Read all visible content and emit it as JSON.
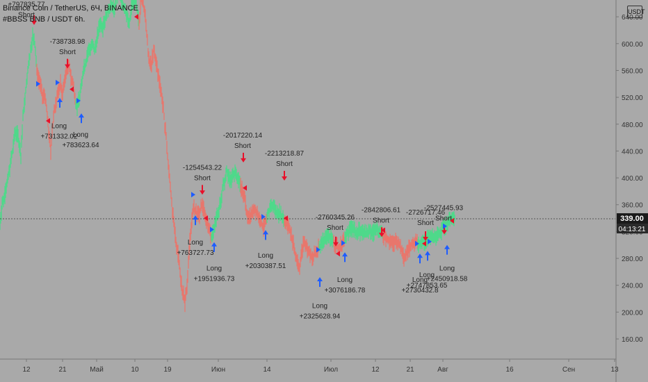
{
  "header": {
    "symbol_line": "Binance Coin / TetherUS, 6Ч, BINANCE",
    "strategy_line": "#BBSS BNB / USDT 6h.",
    "currency_badge": "USDT"
  },
  "price_tag": {
    "price": "339.00",
    "countdown": "04:13:21"
  },
  "colors": {
    "background": "#a9a9a9",
    "up": "#4fd98a",
    "down": "#e8766d",
    "long_arrow": "#1e5cff",
    "short_arrow": "#e8102a",
    "price_tag_bg": "#1a1a1a",
    "countdown_bg": "#2a2a2a"
  },
  "chart_data": {
    "type": "line",
    "y_axis": {
      "ticks": [
        160,
        200,
        240,
        280,
        320,
        360,
        400,
        440,
        480,
        520,
        560,
        600,
        640
      ],
      "tick_labels": [
        "160.00",
        "200.00",
        "240.00",
        "280.00",
        "320.00",
        "360.00",
        "400.00",
        "440.00",
        "480.00",
        "520.00",
        "560.00",
        "600.00",
        "640.00"
      ],
      "ylim": [
        130,
        665
      ],
      "current_price": 339.0
    },
    "x_axis": {
      "tick_labels": [
        "12",
        "21",
        "Май",
        "10",
        "19",
        "Июн",
        "14",
        "Июл",
        "12",
        "21",
        "Авг",
        "16",
        "Сен",
        "13"
      ]
    },
    "price_path": [
      [
        0,
        332
      ],
      [
        3,
        360
      ],
      [
        8,
        380
      ],
      [
        13,
        410
      ],
      [
        18,
        440
      ],
      [
        22,
        470
      ],
      [
        26,
        462
      ],
      [
        30,
        430
      ],
      [
        33,
        490
      ],
      [
        36,
        520
      ],
      [
        40,
        560
      ],
      [
        44,
        590
      ],
      [
        47,
        610
      ],
      [
        50,
        600
      ],
      [
        53,
        560
      ],
      [
        56,
        545
      ],
      [
        58,
        540
      ],
      [
        61,
        520
      ],
      [
        64,
        525
      ],
      [
        67,
        505
      ],
      [
        70,
        470
      ],
      [
        73,
        440
      ],
      [
        75,
        470
      ],
      [
        78,
        500
      ],
      [
        81,
        515
      ],
      [
        84,
        530
      ],
      [
        87,
        540
      ],
      [
        90,
        525
      ],
      [
        93,
        545
      ],
      [
        96,
        560
      ],
      [
        99,
        570
      ],
      [
        102,
        550
      ],
      [
        105,
        540
      ],
      [
        108,
        520
      ],
      [
        111,
        505
      ],
      [
        114,
        520
      ],
      [
        117,
        540
      ],
      [
        120,
        560
      ],
      [
        124,
        575
      ],
      [
        128,
        590
      ],
      [
        132,
        600
      ],
      [
        136,
        590
      ],
      [
        140,
        610
      ],
      [
        144,
        630
      ],
      [
        148,
        625
      ],
      [
        152,
        640
      ],
      [
        156,
        650
      ],
      [
        160,
        660
      ],
      [
        164,
        650
      ],
      [
        168,
        670
      ],
      [
        172,
        680
      ],
      [
        176,
        660
      ],
      [
        180,
        650
      ],
      [
        183,
        640
      ],
      [
        186,
        630
      ],
      [
        190,
        660
      ],
      [
        194,
        670
      ],
      [
        197,
        650
      ],
      [
        200,
        630
      ],
      [
        203,
        670
      ],
      [
        206,
        660
      ],
      [
        209,
        640
      ],
      [
        212,
        600
      ],
      [
        215,
        570
      ],
      [
        218,
        570
      ],
      [
        221,
        590
      ],
      [
        224,
        575
      ],
      [
        227,
        555
      ],
      [
        230,
        540
      ],
      [
        233,
        520
      ],
      [
        236,
        490
      ],
      [
        239,
        460
      ],
      [
        242,
        420
      ],
      [
        245,
        390
      ],
      [
        248,
        350
      ],
      [
        251,
        320
      ],
      [
        254,
        300
      ],
      [
        257,
        280
      ],
      [
        260,
        250
      ],
      [
        263,
        230
      ],
      [
        266,
        215
      ],
      [
        269,
        240
      ],
      [
        272,
        290
      ],
      [
        275,
        330
      ],
      [
        278,
        355
      ],
      [
        281,
        350
      ],
      [
        284,
        345
      ],
      [
        287,
        345
      ],
      [
        290,
        360
      ],
      [
        293,
        355
      ],
      [
        296,
        340
      ],
      [
        299,
        330
      ],
      [
        302,
        320
      ],
      [
        305,
        310
      ],
      [
        308,
        325
      ],
      [
        311,
        340
      ],
      [
        314,
        350
      ],
      [
        317,
        360
      ],
      [
        320,
        385
      ],
      [
        323,
        395
      ],
      [
        326,
        415
      ],
      [
        329,
        400
      ],
      [
        332,
        395
      ],
      [
        335,
        405
      ],
      [
        338,
        410
      ],
      [
        341,
        400
      ],
      [
        344,
        395
      ],
      [
        347,
        385
      ],
      [
        350,
        375
      ],
      [
        353,
        365
      ],
      [
        356,
        340
      ],
      [
        359,
        340
      ],
      [
        362,
        350
      ],
      [
        365,
        355
      ],
      [
        368,
        350
      ],
      [
        371,
        345
      ],
      [
        374,
        335
      ],
      [
        377,
        330
      ],
      [
        380,
        325
      ],
      [
        383,
        340
      ],
      [
        386,
        350
      ],
      [
        389,
        355
      ],
      [
        392,
        360
      ],
      [
        395,
        355
      ],
      [
        398,
        350
      ],
      [
        401,
        348
      ],
      [
        404,
        345
      ],
      [
        407,
        340
      ],
      [
        410,
        335
      ],
      [
        413,
        330
      ],
      [
        416,
        325
      ],
      [
        419,
        315
      ],
      [
        422,
        300
      ],
      [
        425,
        285
      ],
      [
        428,
        275
      ],
      [
        431,
        265
      ],
      [
        434,
        290
      ],
      [
        437,
        305
      ],
      [
        440,
        300
      ],
      [
        443,
        290
      ],
      [
        446,
        285
      ],
      [
        449,
        280
      ],
      [
        452,
        285
      ],
      [
        455,
        290
      ],
      [
        458,
        295
      ],
      [
        461,
        300
      ],
      [
        464,
        305
      ],
      [
        467,
        310
      ],
      [
        470,
        313
      ],
      [
        473,
        314
      ],
      [
        476,
        310
      ],
      [
        479,
        305
      ],
      [
        482,
        300
      ],
      [
        485,
        298
      ],
      [
        488,
        296
      ],
      [
        491,
        300
      ],
      [
        494,
        305
      ],
      [
        497,
        312
      ],
      [
        500,
        318
      ],
      [
        503,
        322
      ],
      [
        506,
        325
      ],
      [
        509,
        322
      ],
      [
        512,
        318
      ],
      [
        515,
        322
      ],
      [
        518,
        320
      ],
      [
        521,
        318
      ],
      [
        524,
        320
      ],
      [
        527,
        316
      ],
      [
        530,
        318
      ],
      [
        533,
        320
      ],
      [
        536,
        318
      ],
      [
        539,
        320
      ],
      [
        542,
        325
      ],
      [
        545,
        322
      ],
      [
        548,
        318
      ],
      [
        551,
        316
      ],
      [
        554,
        312
      ],
      [
        557,
        308
      ],
      [
        560,
        306
      ],
      [
        563,
        304
      ],
      [
        566,
        300
      ],
      [
        569,
        305
      ],
      [
        572,
        303
      ],
      [
        575,
        300
      ],
      [
        578,
        290
      ],
      [
        581,
        282
      ],
      [
        584,
        288
      ],
      [
        587,
        294
      ],
      [
        590,
        298
      ],
      [
        593,
        300
      ],
      [
        596,
        302
      ],
      [
        599,
        305
      ],
      [
        602,
        300
      ],
      [
        605,
        302
      ],
      [
        608,
        304
      ],
      [
        611,
        306
      ],
      [
        614,
        308
      ],
      [
        617,
        310
      ],
      [
        620,
        312
      ],
      [
        623,
        312
      ],
      [
        626,
        314
      ],
      [
        629,
        316
      ],
      [
        632,
        318
      ],
      [
        635,
        322
      ],
      [
        638,
        326
      ],
      [
        641,
        330
      ],
      [
        644,
        334
      ],
      [
        647,
        338
      ],
      [
        650,
        340
      ],
      [
        653,
        338
      ],
      [
        655,
        339
      ]
    ],
    "down_segments": [
      [
        53,
        108
      ],
      [
        200,
        303
      ],
      [
        346,
        383
      ],
      [
        409,
        458
      ],
      [
        480,
        495
      ],
      [
        551,
        600
      ]
    ],
    "trades": [
      {
        "side": "Short",
        "pnl": "+797835.77",
        "marker": [
          49,
          630
        ],
        "text_at": [
          38,
          655
        ]
      },
      {
        "side": "Short",
        "pnl": "-738738.98",
        "marker": [
          97,
          565
        ],
        "text_at": [
          97,
          600
        ]
      },
      {
        "side": "Long",
        "pnl": "+731332.02",
        "marker": [
          86,
          517
        ],
        "text_at": [
          85,
          474
        ]
      },
      {
        "side": "Long",
        "pnl": "+783623.64",
        "marker": [
          117,
          494
        ],
        "text_at": [
          116,
          461
        ]
      },
      {
        "side": "Short",
        "pnl": "-1254543.22",
        "marker": [
          291,
          377
        ],
        "text_at": [
          291,
          412
        ]
      },
      {
        "side": "Long",
        "pnl": "+763727.73",
        "marker": [
          281,
          342
        ],
        "text_at": [
          281,
          301
        ]
      },
      {
        "side": "Long",
        "pnl": "+1951936.73",
        "marker": [
          308,
          302
        ],
        "text_at": [
          308,
          262
        ]
      },
      {
        "side": "Short",
        "pnl": "-2017220.14",
        "marker": [
          350,
          425
        ],
        "text_at": [
          349,
          460
        ]
      },
      {
        "side": "Long",
        "pnl": "+2030387.51",
        "marker": [
          382,
          320
        ],
        "text_at": [
          382,
          281
        ]
      },
      {
        "side": "Short",
        "pnl": "-2213218.87",
        "marker": [
          409,
          398
        ],
        "text_at": [
          409,
          433
        ]
      },
      {
        "side": "Short",
        "pnl": "-2760345.26",
        "marker": [
          483,
          300
        ],
        "text_at": [
          482,
          338
        ]
      },
      {
        "side": "Long",
        "pnl": "+3076186.78",
        "marker": [
          496,
          287
        ],
        "text_at": [
          496,
          245
        ]
      },
      {
        "side": "Long",
        "pnl": "+2325628.94",
        "marker": [
          460,
          250
        ],
        "text_at": [
          460,
          206
        ]
      },
      {
        "side": "Short",
        "pnl": "-2842806.61",
        "marker": [
          549,
          314
        ],
        "text_at": [
          548,
          349
        ]
      },
      {
        "side": "Short",
        "pnl": "-2726717.46",
        "marker": [
          612,
          308
        ],
        "text_at": [
          612,
          345
        ]
      },
      {
        "side": "Short",
        "pnl": "-2527445.93",
        "marker": [
          639,
          318
        ],
        "text_at": [
          638,
          352
        ]
      },
      {
        "side": "Long",
        "pnl": "+2730432.8",
        "marker": [
          604,
          285
        ],
        "text_at": [
          604,
          245
        ]
      },
      {
        "side": "Long",
        "pnl": "+2747853.65",
        "marker": [
          615,
          289
        ],
        "text_at": [
          614,
          252
        ]
      },
      {
        "side": "Long",
        "pnl": "+2450918.58",
        "marker": [
          643,
          298
        ],
        "text_at": [
          643,
          262
        ]
      }
    ],
    "entry_flags": [
      {
        "dir": "long",
        "at": [
          55,
          540
        ]
      },
      {
        "dir": "short",
        "at": [
          69,
          485
        ]
      },
      {
        "dir": "long",
        "at": [
          83,
          542
        ]
      },
      {
        "dir": "short",
        "at": [
          103,
          532
        ]
      },
      {
        "dir": "long",
        "at": [
          113,
          515
        ]
      },
      {
        "dir": "short",
        "at": [
          196,
          640
        ]
      },
      {
        "dir": "long",
        "at": [
          278,
          375
        ]
      },
      {
        "dir": "short",
        "at": [
          296,
          340
        ]
      },
      {
        "dir": "long",
        "at": [
          305,
          323
        ]
      },
      {
        "dir": "short",
        "at": [
          352,
          385
        ]
      },
      {
        "dir": "long",
        "at": [
          379,
          342
        ]
      },
      {
        "dir": "short",
        "at": [
          411,
          340
        ]
      },
      {
        "dir": "long",
        "at": [
          458,
          293
        ]
      },
      {
        "dir": "short",
        "at": [
          486,
          287
        ]
      },
      {
        "dir": "long",
        "at": [
          494,
          303
        ]
      },
      {
        "dir": "short",
        "at": [
          551,
          322
        ]
      },
      {
        "dir": "long",
        "at": [
          600,
          302
        ]
      },
      {
        "dir": "short",
        "at": [
          610,
          302
        ]
      },
      {
        "dir": "long",
        "at": [
          618,
          305
        ]
      },
      {
        "dir": "long",
        "at": [
          640,
          328
        ]
      },
      {
        "dir": "short",
        "at": [
          650,
          336
        ]
      }
    ]
  }
}
